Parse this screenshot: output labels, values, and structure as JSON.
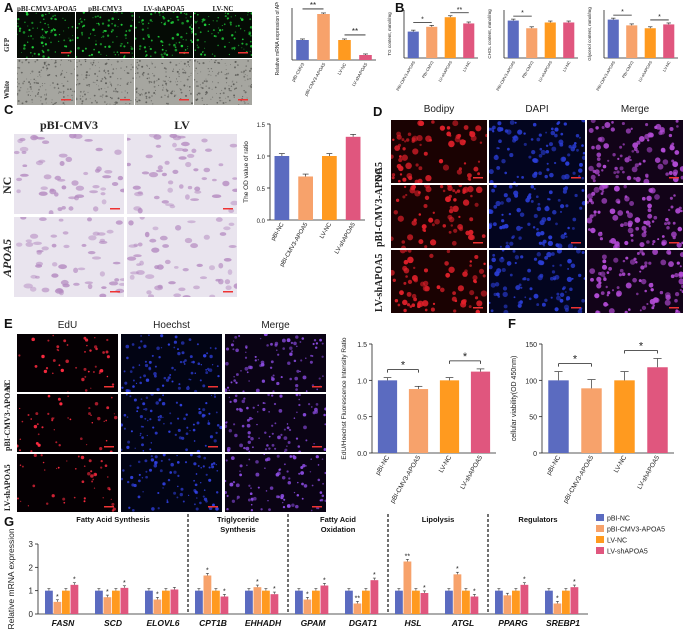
{
  "panels": {
    "A": "A",
    "B": "B",
    "C": "C",
    "D": "D",
    "E": "E",
    "F": "F",
    "G": "G"
  },
  "colors": {
    "blue": "#5b6bc0",
    "orange": "#f7a26b",
    "amber": "#ff9a1f",
    "pink": "#e0567e",
    "green_fluor": "#1fd13a",
    "red_fluor": "#e0202a",
    "dapi": "#2a3dd6",
    "edu": "#ff2a40",
    "hoechst": "#3040e0",
    "stain": "#b48ac0"
  },
  "panel_a": {
    "col_labels": [
      "pBI-CMV3-APOA5",
      "pBI-CMV3",
      "LV-shAPOA5",
      "LV-NC"
    ],
    "row_labels": [
      "GFP",
      "White"
    ]
  },
  "panel_c": {
    "col_labels": [
      "pBI-CMV3",
      "LV"
    ],
    "row_labels": [
      "NC",
      "APOA5"
    ]
  },
  "panel_d": {
    "col_labels": [
      "Bodipy",
      "DAPI",
      "Merge"
    ],
    "row_labels": [
      "NC",
      "pBI-CMV3-APOA5",
      "LV-shAPOA5"
    ]
  },
  "panel_e": {
    "col_labels": [
      "EdU",
      "Hoechst",
      "Merge"
    ],
    "row_labels": [
      "NC",
      "pBI-CMV3-APOA5",
      "LV-shAPOA5"
    ]
  },
  "chart_data": [
    {
      "id": "A-bar",
      "type": "bar",
      "categories": [
        "pBI-CMV3",
        "pBI-CMV3-APOA5",
        "LV-NC",
        "LV-shAPOA5"
      ],
      "values": [
        1.0,
        2.3,
        1.0,
        0.25
      ],
      "ylabel": "Relative mRNA expression of APOA5",
      "ylim": [
        0,
        2.6
      ],
      "significance": [
        "**",
        "**"
      ]
    },
    {
      "id": "B1",
      "type": "bar",
      "categories": [
        "PBI-CMV3-APOA5",
        "PBI-CMV3",
        "LV-shAPOA5",
        "LV-NC"
      ],
      "values": [
        0.55,
        0.65,
        0.85,
        0.72
      ],
      "ylabel": "TG content, mmol/mg",
      "ylim": [
        0,
        1.0
      ],
      "significance": [
        "*",
        "**"
      ]
    },
    {
      "id": "B2",
      "type": "bar",
      "categories": [
        "PBI-CMV3-APOA5",
        "PBI-CMV3",
        "LV-shAPOA5",
        "LV-NC"
      ],
      "values": [
        0.78,
        0.62,
        0.74,
        0.74
      ],
      "ylabel": "CHOL content, mmol/mg",
      "ylim": [
        0,
        1.0
      ],
      "significance": [
        "*"
      ]
    },
    {
      "id": "B3",
      "type": "bar",
      "categories": [
        "PBI-CMV3-APOA5",
        "PBI-CMV3",
        "LV-shAPOA5",
        "LV-NC"
      ],
      "values": [
        0.8,
        0.68,
        0.62,
        0.7
      ],
      "ylabel": "Glycerol content, mmol/mg",
      "ylim": [
        0,
        1.0
      ],
      "significance": [
        "*",
        "*"
      ]
    },
    {
      "id": "C-bar",
      "type": "bar",
      "categories": [
        "pBI-NC",
        "pBI-CMV3-APOA5",
        "LV-NC",
        "LV-shAPOA5"
      ],
      "values": [
        1.0,
        0.68,
        1.0,
        1.3
      ],
      "ylabel": "The OD value of ratio",
      "ylim": [
        0,
        1.5
      ],
      "yticks": [
        0.0,
        0.5,
        1.0,
        1.5
      ],
      "yticklabels": [
        "0.0",
        "0.5",
        "1.0",
        "1.5"
      ]
    },
    {
      "id": "E-bar",
      "type": "bar",
      "categories": [
        "pBI-NC",
        "pBI-CMV3-APOA5",
        "LV-NC",
        "LV-shAPOA5"
      ],
      "values": [
        1.0,
        0.88,
        1.0,
        1.12
      ],
      "ylabel": "EdU/Hoechst Fluorescence Intensity Ratio",
      "ylim": [
        0,
        1.5
      ],
      "yticks": [
        0.0,
        0.5,
        1.0,
        1.5
      ],
      "yticklabels": [
        "0.0",
        "0.5",
        "1.0",
        "1.5"
      ],
      "significance": [
        "*",
        "*"
      ]
    },
    {
      "id": "F-bar",
      "type": "bar",
      "categories": [
        "pBI-NC",
        "pBI-CMV3-APOA5",
        "LV-NC",
        "LV-shAPOA5"
      ],
      "values": [
        100,
        89,
        100,
        118
      ],
      "ylabel": "cellular viability(OD 450nm)",
      "ylim": [
        0,
        150
      ],
      "yticks": [
        0,
        50,
        100,
        150
      ],
      "yticklabels": [
        "0",
        "50",
        "100",
        "150"
      ],
      "significance": [
        "*",
        "*"
      ]
    },
    {
      "id": "G-bar",
      "type": "bar",
      "ylabel": "Relative mRNA expression",
      "ylim": [
        0,
        3
      ],
      "yticks": [
        0,
        1,
        2,
        3
      ],
      "yticklabels": [
        "0",
        "1",
        "2",
        "3"
      ],
      "groups": [
        {
          "label": "Fatty Acid Synthesis",
          "genes": [
            "FASN",
            "SCD",
            "ELOVL6"
          ]
        },
        {
          "label": "Triglyceride Synthesis",
          "genes": [
            "CPT1B",
            "EHHADH"
          ]
        },
        {
          "label": "Fatty Acid Oxidation",
          "genes": [
            "GPAM",
            "DGAT1"
          ]
        },
        {
          "label": "Lipolysis",
          "genes": [
            "HSL",
            "ATGL"
          ]
        },
        {
          "label": "Regulators",
          "genes": [
            "PPARG",
            "SREBP1"
          ]
        }
      ],
      "genes": [
        "FASN",
        "SCD",
        "ELOVL6",
        "CPT1B",
        "EHHADH",
        "GPAM",
        "DGAT1",
        "HSL",
        "ATGL",
        "PPARG",
        "SREBP1"
      ],
      "series": [
        {
          "name": "pBI-NC",
          "values": [
            1.0,
            1.0,
            1.0,
            1.0,
            1.0,
            1.0,
            1.0,
            1.0,
            1.0,
            1.0,
            1.0
          ]
        },
        {
          "name": "pBI-CMV3-APOA5",
          "values": [
            0.52,
            0.72,
            0.62,
            1.65,
            1.15,
            0.62,
            0.45,
            2.25,
            1.7,
            0.8,
            0.45
          ]
        },
        {
          "name": "LV-NC",
          "values": [
            1.0,
            1.0,
            1.0,
            1.0,
            1.0,
            1.0,
            1.0,
            1.0,
            1.0,
            1.0,
            1.0
          ]
        },
        {
          "name": "LV-shAPOA5",
          "values": [
            1.25,
            1.12,
            1.05,
            0.75,
            0.85,
            1.22,
            1.45,
            0.9,
            0.75,
            1.25,
            1.15
          ]
        }
      ],
      "significance": [
        [
          "",
          "*",
          "",
          "*"
        ],
        [
          "",
          "*",
          "",
          "*"
        ],
        [
          "",
          "*",
          "",
          ""
        ],
        [
          "",
          "*",
          "",
          "*"
        ],
        [
          "",
          "*",
          "",
          "*"
        ],
        [
          "",
          "*",
          "",
          "*"
        ],
        [
          "",
          "**",
          "",
          "*"
        ],
        [
          "",
          "**",
          "",
          "*"
        ],
        [
          "",
          "*",
          "",
          "*"
        ],
        [
          "",
          "",
          "",
          "*"
        ],
        [
          "",
          "*",
          "",
          "*"
        ]
      ],
      "legend": [
        "pBI-NC",
        "pBI-CMV3-APOA5",
        "LV-NC",
        "LV-shAPOA5"
      ]
    }
  ]
}
